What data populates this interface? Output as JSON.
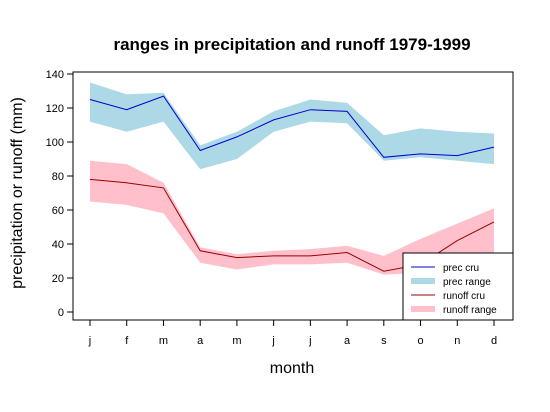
{
  "chart_data": {
    "type": "line",
    "title": "ranges in precipitation and runoff 1979-1999",
    "xlabel": "month",
    "ylabel": "precipitation or runoff (mm)",
    "categories": [
      "j",
      "f",
      "m",
      "a",
      "m",
      "j",
      "j",
      "a",
      "s",
      "o",
      "n",
      "d"
    ],
    "ylim": [
      0,
      140
    ],
    "yticks": [
      0,
      20,
      40,
      60,
      80,
      100,
      120,
      140
    ],
    "grid": false,
    "legend_position": "bottom-right",
    "series": [
      {
        "name": "prec cru",
        "kind": "line",
        "color": "#0000cc",
        "values": [
          125,
          119,
          127,
          95,
          103,
          113,
          119,
          118,
          91,
          93,
          92,
          97
        ]
      },
      {
        "name": "prec range",
        "kind": "band",
        "color": "#add8e6",
        "lower": [
          112,
          106,
          112,
          84,
          90,
          106,
          112,
          111,
          89,
          91,
          89,
          87
        ],
        "upper": [
          135,
          128,
          129,
          98,
          106,
          118,
          125,
          123,
          104,
          108,
          106,
          105
        ]
      },
      {
        "name": "runoff cru",
        "kind": "line",
        "color": "#990000",
        "values": [
          78,
          76,
          73,
          36,
          32,
          33,
          33,
          35,
          24,
          28,
          42,
          53
        ]
      },
      {
        "name": "runoff range",
        "kind": "band",
        "color": "#ffc0cb",
        "lower": [
          65,
          63,
          58,
          29,
          25,
          28,
          28,
          29,
          22,
          23,
          26,
          29
        ],
        "upper": [
          89,
          87,
          76,
          38,
          34,
          36,
          37,
          39,
          33,
          43,
          52,
          61
        ]
      }
    ]
  }
}
